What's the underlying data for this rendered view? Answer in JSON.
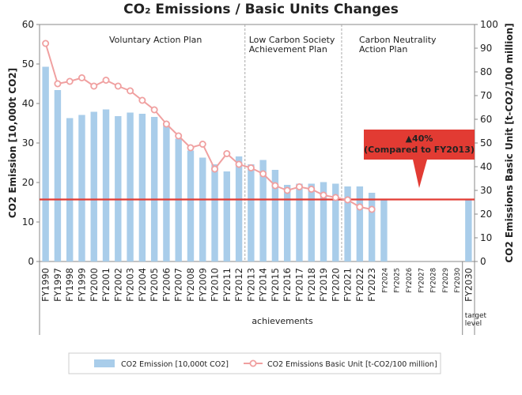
{
  "chart_data": {
    "type": "bar+line",
    "title": "CO₂ Emissions / Basic Units Changes",
    "ylabel_left": "CO2 Emission [10,000t CO2]",
    "ylabel_right": "CO2 Emissions Basic Unit [t-CO2/100 million]",
    "ylim_left": [
      0,
      60
    ],
    "ylim_right": [
      0,
      100
    ],
    "yticks_left": [
      "0",
      "10",
      "20",
      "30",
      "40",
      "50",
      "60"
    ],
    "yticks_right": [
      "0",
      "10",
      "20",
      "30",
      "40",
      "50",
      "60",
      "70",
      "80",
      "90",
      "100"
    ],
    "categories": [
      "FY1990",
      "FY1997",
      "FY1998",
      "FY1999",
      "FY2000",
      "FY2001",
      "FY2002",
      "FY2003",
      "FY2004",
      "FY2005",
      "FY2006",
      "FY2007",
      "FY2008",
      "FY2009",
      "FY2010",
      "FY2011",
      "FY2012",
      "FY2013",
      "FY2014",
      "FY2015",
      "FY2016",
      "FY2017",
      "FY2018",
      "FY2019",
      "FY2020",
      "FY2021",
      "FY2022",
      "FY2023",
      "FY2024",
      "FY2025",
      "FY2026",
      "FY2027",
      "FY2028",
      "FY2029",
      "FY2030",
      "FY2030"
    ],
    "series": [
      {
        "name": "CO2 Emission [10,000t CO2]",
        "kind": "bar",
        "axis": "left",
        "color": "#a9cdea",
        "values": [
          49.3,
          43.4,
          36.3,
          37.1,
          37.9,
          38.5,
          36.8,
          37.7,
          37.4,
          36.6,
          34.5,
          31.1,
          28.1,
          26.3,
          24.6,
          22.8,
          26.6,
          24.6,
          25.7,
          23.2,
          19.4,
          19.7,
          19.7,
          20.1,
          19.7,
          19.0,
          19.0,
          17.4,
          15.6,
          null,
          null,
          null,
          null,
          null,
          null,
          15.5
        ]
      },
      {
        "name": "CO2 Emissions Basic Unit [t-CO2/100 million]",
        "kind": "line",
        "axis": "right",
        "color": "#f0a0a0",
        "values": [
          92,
          75,
          76,
          77.5,
          74,
          76.5,
          74,
          72,
          68,
          64,
          58,
          53,
          48,
          49.5,
          39,
          45.5,
          41,
          39.5,
          37,
          32,
          30,
          31.5,
          30.5,
          28,
          27,
          26,
          23,
          22,
          null,
          null,
          null,
          null,
          null,
          null,
          null,
          null
        ]
      }
    ],
    "target_line": {
      "value": 15.7,
      "axis": "left",
      "color": "#e23b33"
    },
    "period_labels": [
      {
        "lines": [
          "Voluntary Action Plan"
        ]
      },
      {
        "lines": [
          "Low Carbon Society",
          "Achievement Plan"
        ]
      },
      {
        "lines": [
          "Carbon Neutrality",
          "Action Plan"
        ]
      }
    ],
    "callout": {
      "lines": [
        "▲40%",
        "(Compared to FY2013)"
      ],
      "color": "#e23b33"
    },
    "group_labels": {
      "achievements": "achievements",
      "target": [
        "target",
        "level"
      ]
    },
    "legend": {
      "position": "bottom",
      "bar_label": "CO2 Emission [10,000t CO2]",
      "line_label": "CO2 Emissions Basic Unit [t-CO2/100 million]"
    }
  }
}
